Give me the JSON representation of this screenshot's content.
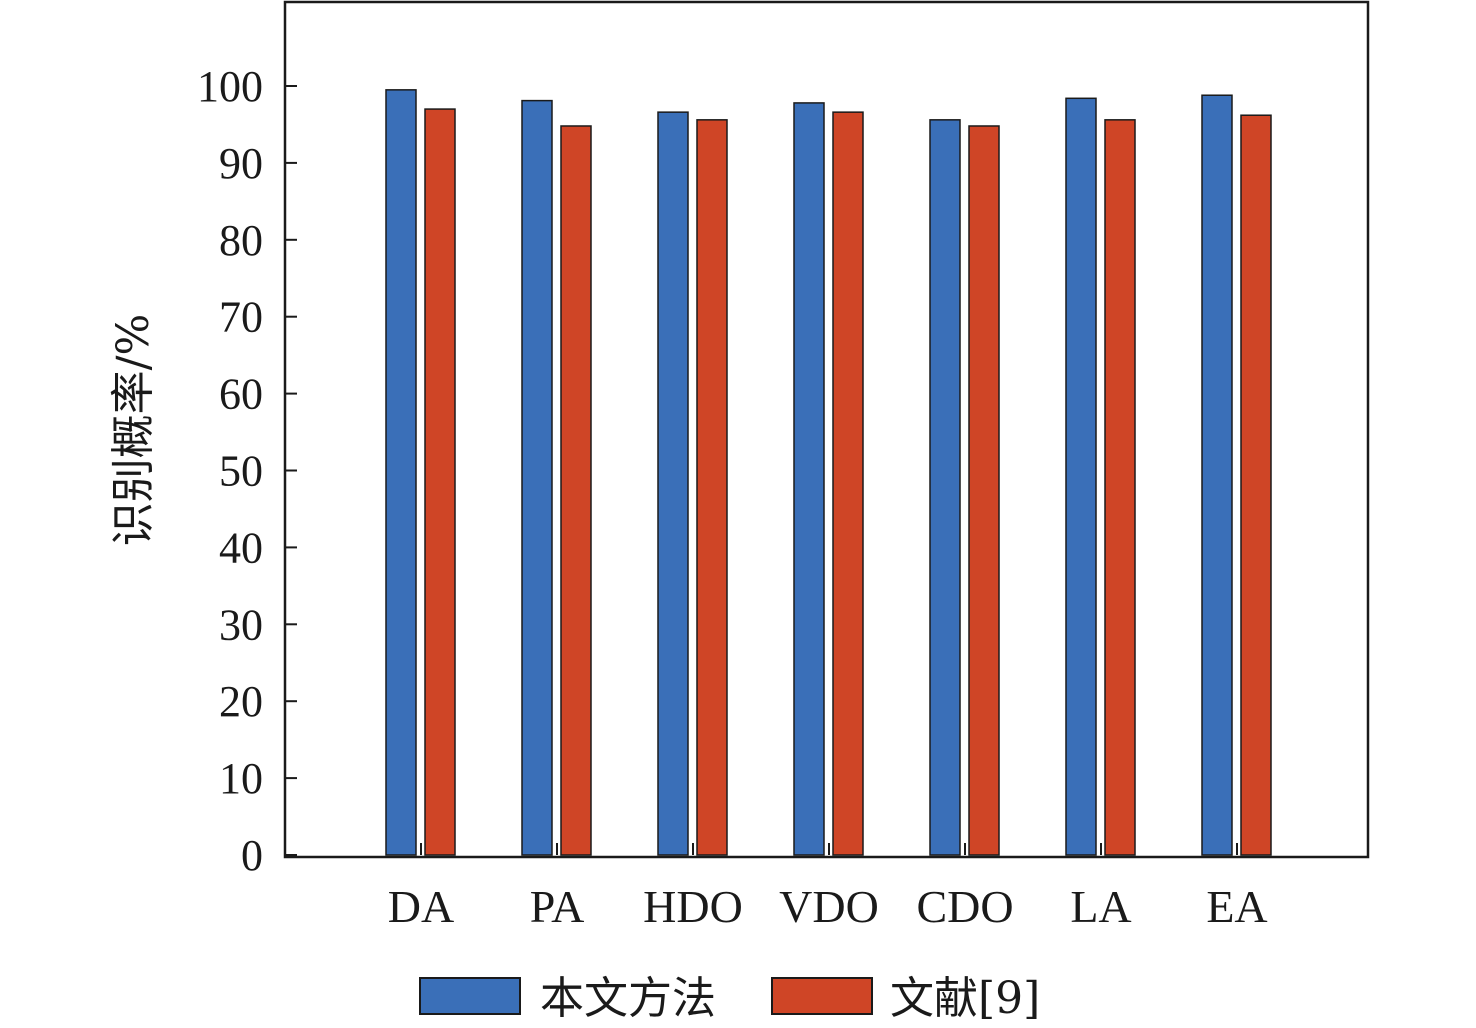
{
  "chart_data": {
    "type": "bar",
    "title": "",
    "xlabel": "",
    "ylabel": "识别概率/%",
    "ylim": [
      0,
      110
    ],
    "yticks": [
      0,
      10,
      20,
      30,
      40,
      50,
      60,
      70,
      80,
      90,
      100
    ],
    "grid": false,
    "legend_position": "bottom",
    "categories": [
      "DA",
      "PA",
      "HDO",
      "VDO",
      "CDO",
      "LA",
      "EA"
    ],
    "series": [
      {
        "name": "本文方法",
        "color": "#3a6fb8",
        "values": [
          99.5,
          98.1,
          96.6,
          97.8,
          95.6,
          98.4,
          98.8
        ]
      },
      {
        "name": "文献[9]",
        "color": "#cf4526",
        "values": [
          97.0,
          94.8,
          95.6,
          96.6,
          94.8,
          95.6,
          96.2
        ]
      }
    ]
  }
}
